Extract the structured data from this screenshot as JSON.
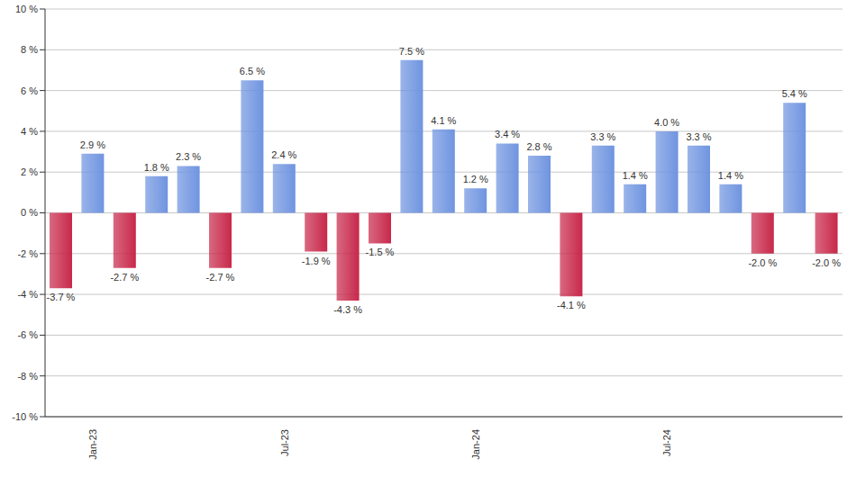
{
  "chart_data": {
    "type": "bar",
    "categories": [
      null,
      "Jan-23",
      null,
      null,
      null,
      null,
      null,
      "Jul-23",
      null,
      null,
      null,
      null,
      null,
      "Jan-24",
      null,
      null,
      null,
      null,
      null,
      "Jul-24",
      null,
      null,
      null,
      null,
      null
    ],
    "values": [
      -3.7,
      2.9,
      -2.7,
      1.8,
      2.3,
      -2.7,
      6.5,
      2.4,
      -1.9,
      -4.3,
      -1.5,
      7.5,
      4.1,
      1.2,
      3.4,
      2.8,
      -4.1,
      3.3,
      1.4,
      4.0,
      3.3,
      1.4,
      -2.0,
      5.4,
      -2.0
    ],
    "value_labels": [
      "-3.7 %",
      "2.9 %",
      "-2.7 %",
      "1.8 %",
      "2.3 %",
      "-2.7 %",
      "6.5 %",
      "2.4 %",
      "-1.9 %",
      "-4.3 %",
      "-1.5 %",
      "7.5 %",
      "4.1 %",
      "1.2 %",
      "3.4 %",
      "2.8 %",
      "-4.1 %",
      "3.3 %",
      "1.4 %",
      "4.0 %",
      "3.3 %",
      "1.4 %",
      "-2.0 %",
      "5.4 %",
      "-2.0 %"
    ],
    "colors": [
      "#c8284a",
      "#6f94e0",
      "#c8284a",
      "#6f94e0",
      "#6f94e0",
      "#c8284a",
      "#6f94e0",
      "#6f94e0",
      "#c8284a",
      "#c8284a",
      "#c8284a",
      "#6f94e0",
      "#6f94e0",
      "#6f94e0",
      "#6f94e0",
      "#6f94e0",
      "#c8284a",
      "#6f94e0",
      "#6f94e0",
      "#6f94e0",
      "#6f94e0",
      "#6f94e0",
      "#c8284a",
      "#6f94e0",
      "#c8284a"
    ],
    "ylim": [
      -10,
      10
    ],
    "yticks": [
      {
        "value": -10,
        "label": "-10 %"
      },
      {
        "value": -8,
        "label": "-8 %"
      },
      {
        "value": -6,
        "label": "-6 %"
      },
      {
        "value": -4,
        "label": "-4 %"
      },
      {
        "value": -2,
        "label": "-2 %"
      },
      {
        "value": 0,
        "label": "0 %"
      },
      {
        "value": 2,
        "label": "2 %"
      },
      {
        "value": 4,
        "label": "4 %"
      },
      {
        "value": 6,
        "label": "6 %"
      },
      {
        "value": 8,
        "label": "8 %"
      },
      {
        "value": 10,
        "label": "10 %"
      }
    ],
    "grid": true,
    "data_labels": true
  }
}
